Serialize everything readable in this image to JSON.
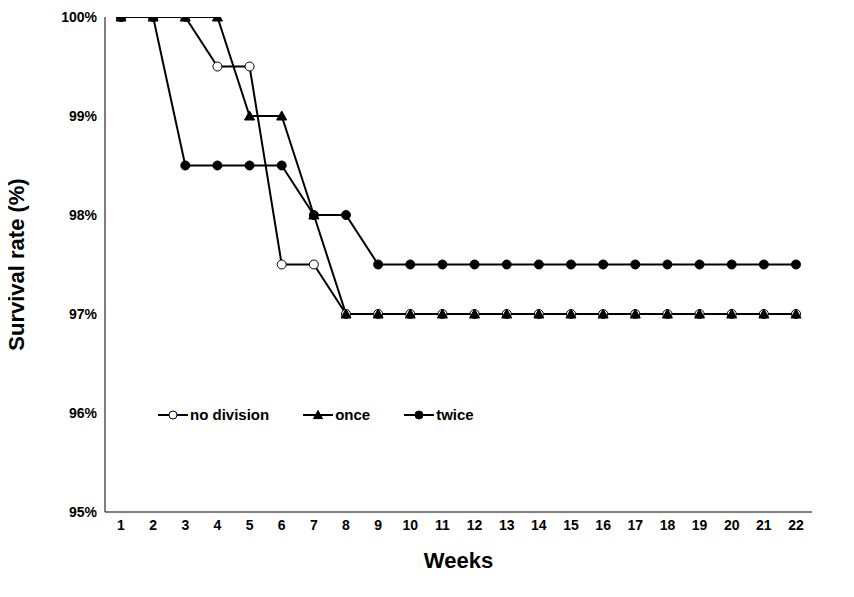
{
  "chart_data": {
    "type": "line",
    "x_label": "Weeks",
    "y_label": "Survival rate (%)",
    "categories": [
      "1",
      "2",
      "3",
      "4",
      "5",
      "6",
      "7",
      "8",
      "9",
      "10",
      "11",
      "12",
      "13",
      "14",
      "15",
      "16",
      "17",
      "18",
      "19",
      "20",
      "21",
      "22"
    ],
    "series": [
      {
        "name": "no division",
        "color": "#000000",
        "marker": "circle-open",
        "values": [
          100,
          100,
          100,
          99.5,
          99.5,
          97.5,
          97.5,
          97,
          97,
          97,
          97,
          97,
          97,
          97,
          97,
          97,
          97,
          97,
          97,
          97,
          97,
          97
        ]
      },
      {
        "name": "once",
        "color": "#000000",
        "marker": "triangle",
        "values": [
          100,
          100,
          100,
          100,
          99,
          99,
          98,
          97,
          97,
          97,
          97,
          97,
          97,
          97,
          97,
          97,
          97,
          97,
          97,
          97,
          97,
          97
        ]
      },
      {
        "name": "twice",
        "color": "#000000",
        "marker": "circle",
        "values": [
          100,
          100,
          98.5,
          98.5,
          98.5,
          98.5,
          98,
          98,
          97.5,
          97.5,
          97.5,
          97.5,
          97.5,
          97.5,
          97.5,
          97.5,
          97.5,
          97.5,
          97.5,
          97.5,
          97.5,
          97.5
        ]
      }
    ],
    "ylim": [
      95,
      100
    ],
    "yticks": [
      {
        "value": 95,
        "label": "95%"
      },
      {
        "value": 96,
        "label": "96%"
      },
      {
        "value": 97,
        "label": "97%"
      },
      {
        "value": 98,
        "label": "98%"
      },
      {
        "value": 99,
        "label": "99%"
      },
      {
        "value": 100,
        "label": "100%"
      }
    ],
    "grid": false,
    "legend": "lower left"
  }
}
